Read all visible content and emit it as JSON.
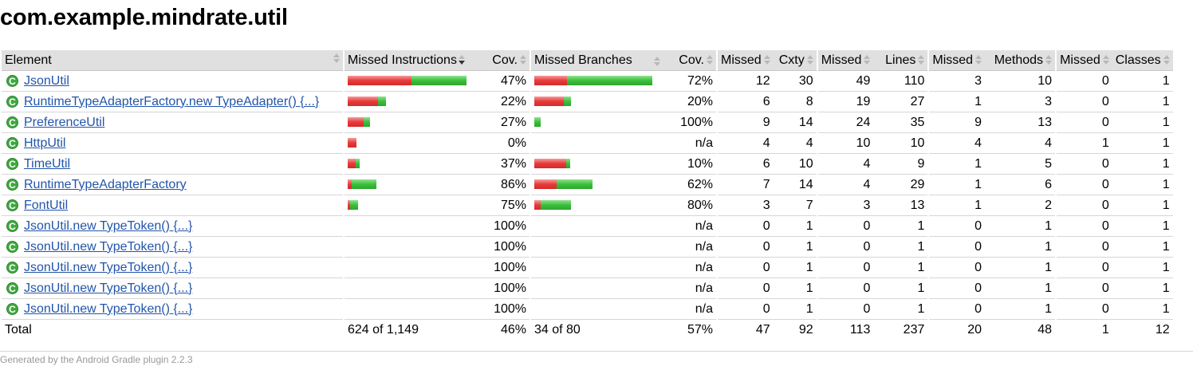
{
  "page_title": "com.example.mindrate.util",
  "headers": {
    "element": "Element",
    "missed_instructions": "Missed Instructions",
    "cov1": "Cov.",
    "missed_branches": "Missed Branches",
    "cov2": "Cov.",
    "missed_cxty": "Missed",
    "cxty": "Cxty",
    "missed_lines": "Missed",
    "lines": "Lines",
    "missed_methods": "Missed",
    "methods": "Methods",
    "missed_classes": "Missed",
    "classes": "Classes"
  },
  "rows": [
    {
      "name": "JsonUtil",
      "instr_cov": "47%",
      "branch_cov": "72%",
      "mcx": "12",
      "cx": "30",
      "ml": "49",
      "l": "110",
      "mm": "3",
      "m": "10",
      "mc": "0",
      "c": "1"
    },
    {
      "name": "RuntimeTypeAdapterFactory.new TypeAdapter() {...}",
      "instr_cov": "22%",
      "branch_cov": "20%",
      "mcx": "6",
      "cx": "8",
      "ml": "19",
      "l": "27",
      "mm": "1",
      "m": "3",
      "mc": "0",
      "c": "1"
    },
    {
      "name": "PreferenceUtil",
      "instr_cov": "27%",
      "branch_cov": "100%",
      "mcx": "9",
      "cx": "14",
      "ml": "24",
      "l": "35",
      "mm": "9",
      "m": "13",
      "mc": "0",
      "c": "1"
    },
    {
      "name": "HttpUtil",
      "instr_cov": "0%",
      "branch_cov": "n/a",
      "mcx": "4",
      "cx": "4",
      "ml": "10",
      "l": "10",
      "mm": "4",
      "m": "4",
      "mc": "1",
      "c": "1"
    },
    {
      "name": "TimeUtil",
      "instr_cov": "37%",
      "branch_cov": "10%",
      "mcx": "6",
      "cx": "10",
      "ml": "4",
      "l": "9",
      "mm": "1",
      "m": "5",
      "mc": "0",
      "c": "1"
    },
    {
      "name": "RuntimeTypeAdapterFactory",
      "instr_cov": "86%",
      "branch_cov": "62%",
      "mcx": "7",
      "cx": "14",
      "ml": "4",
      "l": "29",
      "mm": "1",
      "m": "6",
      "mc": "0",
      "c": "1"
    },
    {
      "name": "FontUtil",
      "instr_cov": "75%",
      "branch_cov": "80%",
      "mcx": "3",
      "cx": "7",
      "ml": "3",
      "l": "13",
      "mm": "1",
      "m": "2",
      "mc": "0",
      "c": "1"
    },
    {
      "name": "JsonUtil.new TypeToken() {...}",
      "instr_cov": "100%",
      "branch_cov": "n/a",
      "mcx": "0",
      "cx": "1",
      "ml": "0",
      "l": "1",
      "mm": "0",
      "m": "1",
      "mc": "0",
      "c": "1"
    },
    {
      "name": "JsonUtil.new TypeToken() {...}",
      "instr_cov": "100%",
      "branch_cov": "n/a",
      "mcx": "0",
      "cx": "1",
      "ml": "0",
      "l": "1",
      "mm": "0",
      "m": "1",
      "mc": "0",
      "c": "1"
    },
    {
      "name": "JsonUtil.new TypeToken() {...}",
      "instr_cov": "100%",
      "branch_cov": "n/a",
      "mcx": "0",
      "cx": "1",
      "ml": "0",
      "l": "1",
      "mm": "0",
      "m": "1",
      "mc": "0",
      "c": "1"
    },
    {
      "name": "JsonUtil.new TypeToken() {...}",
      "instr_cov": "100%",
      "branch_cov": "n/a",
      "mcx": "0",
      "cx": "1",
      "ml": "0",
      "l": "1",
      "mm": "0",
      "m": "1",
      "mc": "0",
      "c": "1"
    },
    {
      "name": "JsonUtil.new TypeToken() {...}",
      "instr_cov": "100%",
      "branch_cov": "n/a",
      "mcx": "0",
      "cx": "1",
      "ml": "0",
      "l": "1",
      "mm": "0",
      "m": "1",
      "mc": "0",
      "c": "1"
    }
  ],
  "total": {
    "label": "Total",
    "instr": "624 of 1,149",
    "instr_cov": "46%",
    "branch": "34 of 80",
    "branch_cov": "57%",
    "mcx": "47",
    "cx": "92",
    "ml": "113",
    "l": "237",
    "mm": "20",
    "m": "48",
    "mc": "1",
    "c": "12"
  },
  "footer": "Generated by the Android Gradle plugin 2.2.3",
  "colors": {
    "missed": "#e63b3b",
    "covered": "#3cbf3c",
    "link": "#2255aa"
  },
  "icons": {
    "class": "class-c-icon",
    "sort": "sort-icon"
  }
}
